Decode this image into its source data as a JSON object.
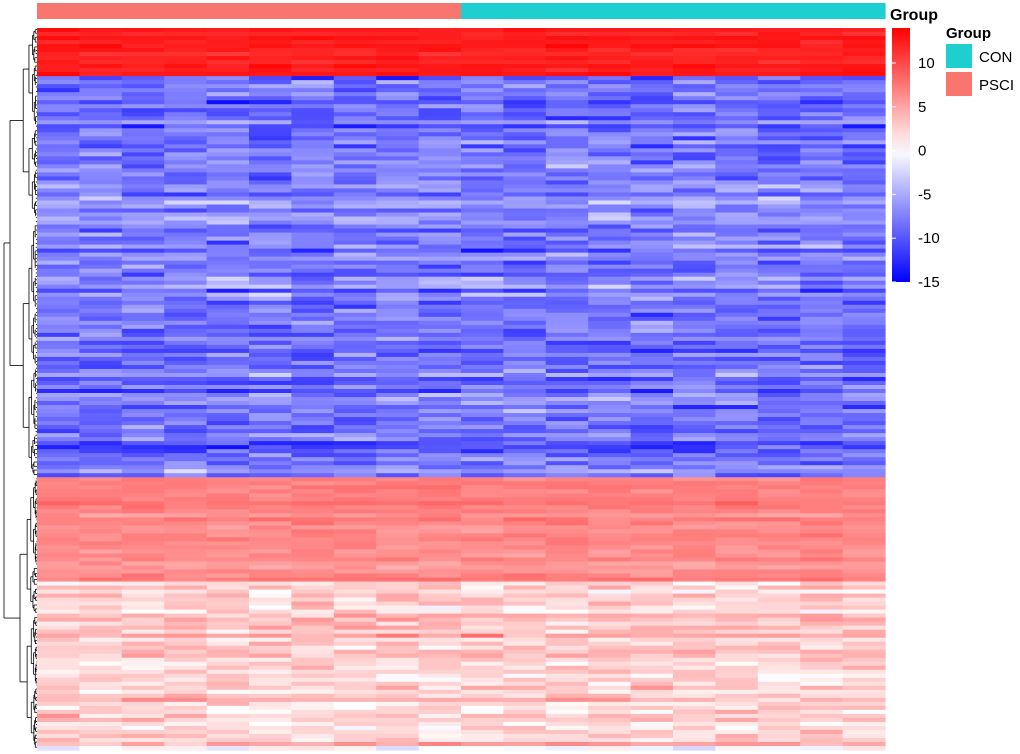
{
  "chart_data": {
    "type": "heatmap",
    "title": "",
    "column_annotation": {
      "title": "Group",
      "groups": [
        "PSCI",
        "PSCI",
        "PSCI",
        "PSCI",
        "PSCI",
        "PSCI",
        "PSCI",
        "PSCI",
        "PSCI",
        "PSCI",
        "CON",
        "CON",
        "CON",
        "CON",
        "CON",
        "CON",
        "CON",
        "CON",
        "CON",
        "CON"
      ]
    },
    "n_columns": 20,
    "n_rows": 180,
    "row_blocks": [
      {
        "rows": 12,
        "mean": 12.5,
        "spread": 1.2
      },
      {
        "rows": 100,
        "mean": -8,
        "spread": 4.5
      },
      {
        "rows": 26,
        "mean": 6.5,
        "spread": 1.6
      },
      {
        "rows": 42,
        "mean": 2.5,
        "spread": 3.5
      }
    ],
    "color_scale": {
      "min": -15,
      "mid": 0,
      "max": 14,
      "low_color": "#0000ff",
      "mid_color": "#ffffff",
      "high_color": "#ff0000",
      "ticks": [
        10,
        5,
        0,
        -5,
        -10,
        -15
      ]
    },
    "legend": {
      "title": "Group",
      "placement": "right",
      "items": [
        {
          "label": "CON",
          "color": "#1fcfcf"
        },
        {
          "label": "PSCI",
          "color": "#f8766d"
        }
      ]
    },
    "row_dendrogram": true,
    "column_dendrogram": false
  }
}
